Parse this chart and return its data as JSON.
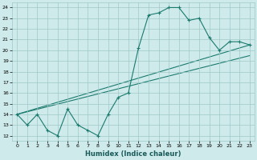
{
  "xlabel": "Humidex (Indice chaleur)",
  "ylabel": "",
  "bg_color": "#ceeaea",
  "grid_color": "#9ec8c8",
  "line_color": "#1a7a6e",
  "xlim": [
    -0.5,
    23.5
  ],
  "ylim": [
    11.5,
    24.5
  ],
  "xticks": [
    0,
    1,
    2,
    3,
    4,
    5,
    6,
    7,
    8,
    9,
    10,
    11,
    12,
    13,
    14,
    15,
    16,
    17,
    18,
    19,
    20,
    21,
    22,
    23
  ],
  "yticks": [
    12,
    13,
    14,
    15,
    16,
    17,
    18,
    19,
    20,
    21,
    22,
    23,
    24
  ],
  "jagged_x": [
    0,
    1,
    2,
    3,
    4,
    5,
    6,
    7,
    8,
    9,
    10,
    11,
    12,
    13,
    14,
    15,
    16,
    17,
    18,
    19,
    20,
    21,
    22,
    23
  ],
  "jagged_y": [
    14,
    13,
    14,
    12.5,
    12,
    14.5,
    13,
    12.5,
    12,
    14,
    15.6,
    16,
    20.2,
    23.3,
    23.5,
    24,
    24,
    22.8,
    23,
    21.2,
    20,
    20.8,
    20.8,
    20.5
  ],
  "line2_x": [
    0,
    23
  ],
  "line2_y": [
    14,
    20.5
  ],
  "line3_x": [
    0,
    23
  ],
  "line3_y": [
    14,
    19.5
  ]
}
